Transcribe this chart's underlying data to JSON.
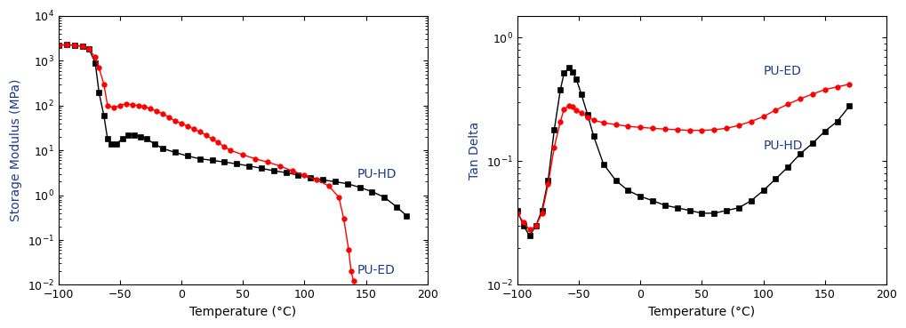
{
  "xlabel": "Temperature (°C)",
  "left_ylabel": "Storage Modulus (MPa)",
  "right_ylabel": "Tan Delta",
  "xlim": [
    -100,
    200
  ],
  "left_ylim": [
    0.01,
    10000
  ],
  "right_ylim": [
    0.01,
    1.5
  ],
  "text_color": "#1a3a8a",
  "puhd_storage_x": [
    -100,
    -93,
    -87,
    -80,
    -75,
    -70,
    -67,
    -63,
    -60,
    -57,
    -53,
    -48,
    -43,
    -38,
    -33,
    -28,
    -22,
    -15,
    -5,
    5,
    15,
    25,
    35,
    45,
    55,
    65,
    75,
    85,
    95,
    105,
    115,
    125,
    135,
    145,
    155,
    165,
    175,
    183
  ],
  "puhd_storage_y": [
    2200,
    2300,
    2200,
    2100,
    1800,
    900,
    200,
    60,
    18,
    14,
    14,
    18,
    22,
    22,
    20,
    18,
    14,
    11,
    9,
    7.5,
    6.5,
    6,
    5.5,
    5,
    4.5,
    4,
    3.5,
    3.2,
    2.8,
    2.5,
    2.2,
    2.0,
    1.8,
    1.5,
    1.2,
    0.9,
    0.55,
    0.35
  ],
  "pued_storage_x": [
    -100,
    -93,
    -87,
    -80,
    -75,
    -70,
    -67,
    -63,
    -60,
    -55,
    -50,
    -45,
    -40,
    -35,
    -30,
    -25,
    -20,
    -15,
    -10,
    -5,
    0,
    5,
    10,
    15,
    20,
    25,
    30,
    35,
    40,
    50,
    60,
    70,
    80,
    90,
    100,
    110,
    120,
    128,
    132,
    136,
    138,
    140
  ],
  "pued_storage_y": [
    2200,
    2300,
    2200,
    2100,
    1800,
    1200,
    700,
    300,
    100,
    90,
    100,
    110,
    105,
    100,
    95,
    85,
    75,
    65,
    55,
    45,
    40,
    35,
    30,
    26,
    22,
    18,
    15,
    12,
    10,
    8,
    6.5,
    5.5,
    4.5,
    3.5,
    2.8,
    2.2,
    1.6,
    0.9,
    0.3,
    0.06,
    0.02,
    0.012
  ],
  "puhd_tan_x": [
    -100,
    -95,
    -90,
    -85,
    -80,
    -75,
    -70,
    -65,
    -62,
    -58,
    -55,
    -52,
    -48,
    -43,
    -38,
    -30,
    -20,
    -10,
    0,
    10,
    20,
    30,
    40,
    50,
    60,
    70,
    80,
    90,
    100,
    110,
    120,
    130,
    140,
    150,
    160,
    170
  ],
  "puhd_tan_y": [
    0.04,
    0.03,
    0.025,
    0.03,
    0.04,
    0.07,
    0.18,
    0.38,
    0.52,
    0.57,
    0.53,
    0.46,
    0.35,
    0.24,
    0.16,
    0.095,
    0.07,
    0.058,
    0.052,
    0.048,
    0.044,
    0.042,
    0.04,
    0.038,
    0.038,
    0.04,
    0.042,
    0.048,
    0.058,
    0.072,
    0.09,
    0.115,
    0.14,
    0.175,
    0.21,
    0.28
  ],
  "pued_tan_x": [
    -100,
    -95,
    -90,
    -85,
    -80,
    -75,
    -70,
    -65,
    -62,
    -58,
    -55,
    -52,
    -48,
    -43,
    -38,
    -30,
    -20,
    -10,
    0,
    10,
    20,
    30,
    40,
    50,
    60,
    70,
    80,
    90,
    100,
    110,
    120,
    130,
    140,
    150,
    160,
    170
  ],
  "pued_tan_y": [
    0.038,
    0.032,
    0.028,
    0.03,
    0.038,
    0.065,
    0.13,
    0.21,
    0.265,
    0.28,
    0.275,
    0.26,
    0.245,
    0.228,
    0.215,
    0.205,
    0.198,
    0.192,
    0.188,
    0.185,
    0.182,
    0.18,
    0.178,
    0.178,
    0.18,
    0.185,
    0.195,
    0.21,
    0.23,
    0.26,
    0.29,
    0.32,
    0.35,
    0.38,
    0.4,
    0.42
  ],
  "puhd_color": "#000000",
  "pued_color": "#ff0000",
  "puhd_marker": "s",
  "pued_marker": "o",
  "marker_size": 4,
  "linewidth": 1.0,
  "label_fontsize": 10,
  "tick_fontsize": 9,
  "annotation_fontsize": 10
}
